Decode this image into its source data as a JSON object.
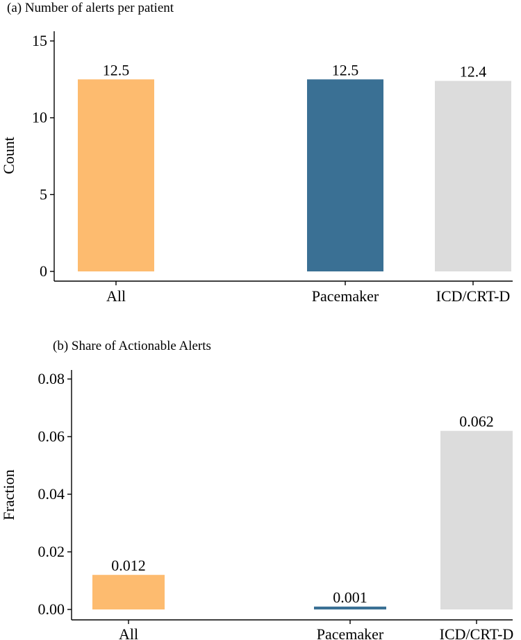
{
  "chart_data": [
    {
      "type": "bar",
      "title": "(a) Number of alerts per patient",
      "xlabel": "",
      "ylabel": "Count",
      "ylim": [
        0,
        15
      ],
      "yticks": [
        "0",
        "5",
        "10",
        "15"
      ],
      "categories": [
        "All",
        "Pacemaker",
        "ICD/CRT-D"
      ],
      "values": [
        12.5,
        12.5,
        12.4
      ],
      "labels": [
        "12.5",
        "12.5",
        "12.4"
      ],
      "colors": [
        "#fdbb6f",
        "#3a7094",
        "#dcdcdc"
      ]
    },
    {
      "type": "bar",
      "title": "(b) Share of Actionable Alerts",
      "xlabel": "",
      "ylabel": "Fraction",
      "ylim": [
        0,
        0.08
      ],
      "yticks": [
        "0.00",
        "0.02",
        "0.04",
        "0.06",
        "0.08"
      ],
      "categories": [
        "All",
        "Pacemaker",
        "ICD/CRT-D"
      ],
      "values": [
        0.012,
        0.001,
        0.062
      ],
      "labels": [
        "0.012",
        "0.001",
        "0.062"
      ],
      "colors": [
        "#fdbb6f",
        "#3a7094",
        "#dcdcdc"
      ]
    }
  ]
}
